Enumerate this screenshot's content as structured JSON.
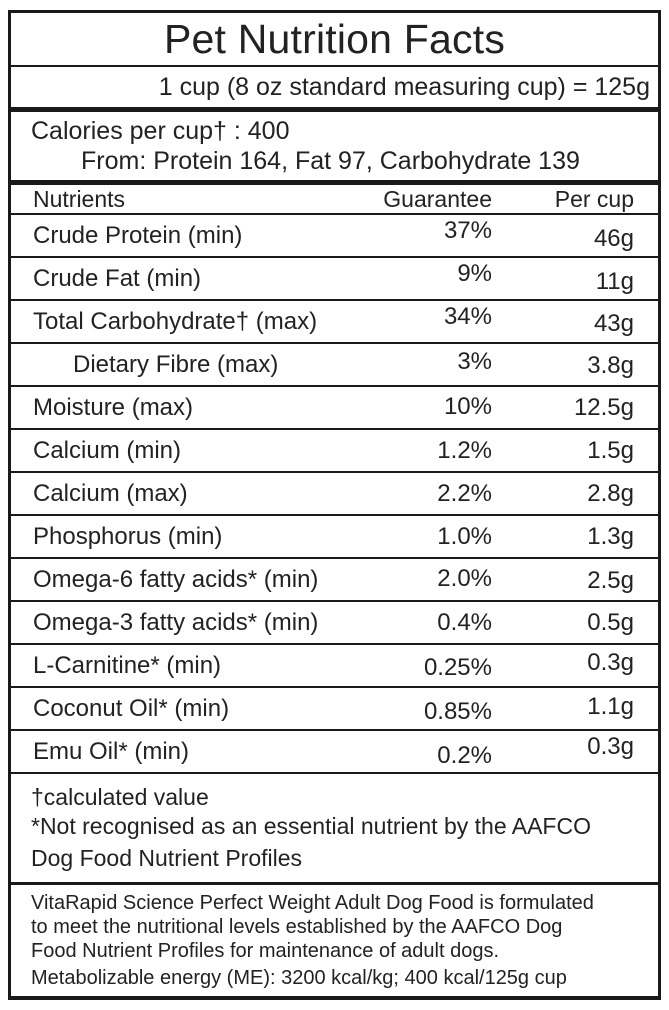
{
  "label": {
    "title": "Pet Nutrition Facts",
    "serving_statement": "1 cup (8 oz standard measuring cup) = 125g",
    "calories": {
      "line1": "Calories per cup† : 400",
      "line2": "From: Protein 164, Fat 97, Carbohydrate 139"
    },
    "table": {
      "headers": [
        "Nutrients",
        "Guarantee",
        "Per cup"
      ],
      "rows": [
        {
          "nutrient": "Crude Protein (min)",
          "guarantee": "37%",
          "per_cup": "46g"
        },
        {
          "nutrient": "Crude Fat (min)",
          "guarantee": "9%",
          "per_cup": "11g"
        },
        {
          "nutrient": "Total Carbohydrate† (max)",
          "guarantee": "34%",
          "per_cup": "43g"
        },
        {
          "nutrient": "Dietary Fibre (max)",
          "guarantee": "3%",
          "per_cup": "3.8g",
          "indent": true
        },
        {
          "nutrient": "Moisture (max)",
          "guarantee": "10%",
          "per_cup": "12.5g"
        },
        {
          "nutrient": "Calcium (min)",
          "guarantee": "1.2%",
          "per_cup": "1.5g"
        },
        {
          "nutrient": "Calcium (max)",
          "guarantee": "2.2%",
          "per_cup": "2.8g"
        },
        {
          "nutrient": "Phosphorus (min)",
          "guarantee": "1.0%",
          "per_cup": "1.3g"
        },
        {
          "nutrient": "Omega-6 fatty acids* (min)",
          "guarantee": "2.0%",
          "per_cup": "2.5g"
        },
        {
          "nutrient": "Omega-3 fatty acids* (min)",
          "guarantee": "0.4%",
          "per_cup": "0.5g"
        },
        {
          "nutrient": "L-Carnitine* (min)",
          "guarantee": "0.25%",
          "per_cup": "0.3g"
        },
        {
          "nutrient": "Coconut Oil* (min)",
          "guarantee": "0.85%",
          "per_cup": "1.1g"
        },
        {
          "nutrient": "Emu Oil* (min)",
          "guarantee": "0.2%",
          "per_cup": "0.3g"
        }
      ]
    },
    "footnotes": {
      "lines": [
        "†calculated value",
        "*Not recognised as an essential nutrient by the AAFCO",
        "Dog Food Nutrient Profiles"
      ]
    },
    "footer": {
      "lines": [
        "VitaRapid Science Perfect Weight Adult Dog Food is formulated",
        "to meet the nutritional levels established by the AAFCO Dog",
        "Food Nutrient Profiles for maintenance of adult dogs.",
        "Metabolizable energy (ME): 3200 kcal/kg; 400 kcal/125g cup"
      ]
    },
    "colors": {
      "border": "#1a1a1a",
      "text": "#222222",
      "background": "#ffffff"
    }
  }
}
